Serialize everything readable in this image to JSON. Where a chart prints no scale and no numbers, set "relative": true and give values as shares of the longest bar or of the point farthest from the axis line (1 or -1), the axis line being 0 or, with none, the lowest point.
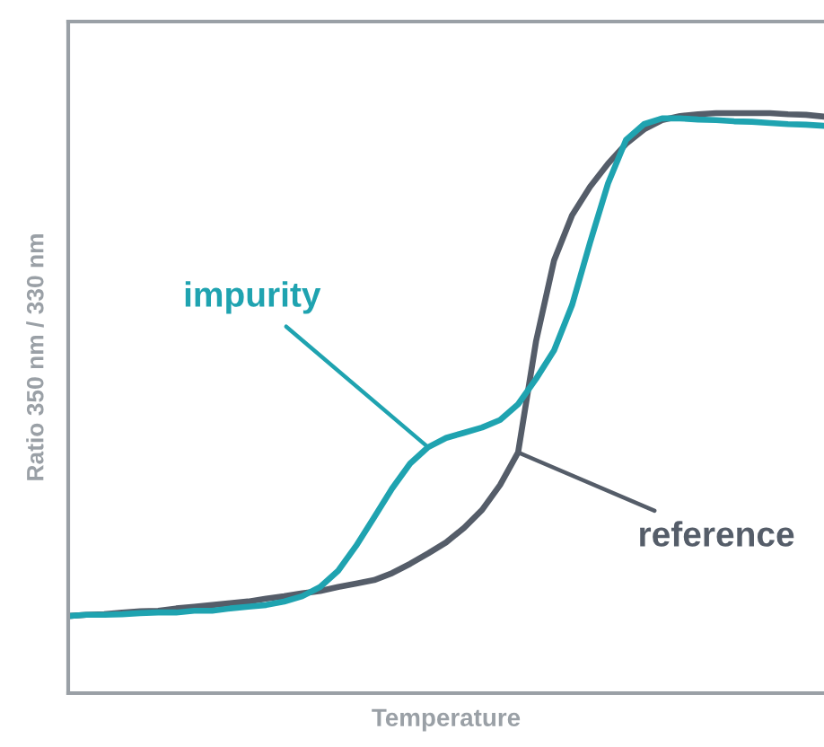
{
  "chart_data": {
    "type": "line",
    "xlabel": "Temperature",
    "ylabel": "Ratio 350 nm / 330 nm",
    "relative": true,
    "legend": false,
    "marker": "none",
    "line_style": "solid",
    "categories": [
      null,
      null,
      null,
      null,
      null,
      null,
      null,
      null,
      null,
      null,
      null,
      null,
      null,
      null,
      null,
      null,
      null,
      null,
      null,
      null,
      null,
      null,
      null,
      null,
      null,
      null,
      null,
      null,
      null,
      null,
      null,
      null,
      null,
      null,
      null,
      null,
      null,
      null,
      null,
      null,
      null,
      null,
      null
    ],
    "series": [
      {
        "name": "reference",
        "color": "#555d69",
        "values": [
          0.133,
          0.135,
          0.136,
          0.139,
          0.141,
          0.142,
          0.146,
          0.149,
          0.152,
          0.155,
          0.158,
          0.163,
          0.167,
          0.172,
          0.176,
          0.183,
          0.189,
          0.195,
          0.207,
          0.223,
          0.241,
          0.26,
          0.285,
          0.316,
          0.359,
          0.415,
          0.607,
          0.746,
          0.824,
          0.873,
          0.913,
          0.947,
          0.972,
          0.988,
          0.995,
          0.998,
          1,
          1,
          1,
          1,
          0.998,
          0.997,
          0.994
        ]
      },
      {
        "name": "impurity",
        "color": "#1fa3b0",
        "values": [
          0.133,
          0.135,
          0.135,
          0.136,
          0.138,
          0.139,
          0.139,
          0.142,
          0.142,
          0.146,
          0.149,
          0.152,
          0.158,
          0.167,
          0.183,
          0.211,
          0.254,
          0.303,
          0.353,
          0.396,
          0.424,
          0.44,
          0.449,
          0.458,
          0.471,
          0.498,
          0.542,
          0.591,
          0.669,
          0.777,
          0.879,
          0.954,
          0.981,
          0.991,
          0.991,
          0.989,
          0.988,
          0.986,
          0.985,
          0.983,
          0.981,
          0.98,
          0.978
        ]
      }
    ]
  }
}
